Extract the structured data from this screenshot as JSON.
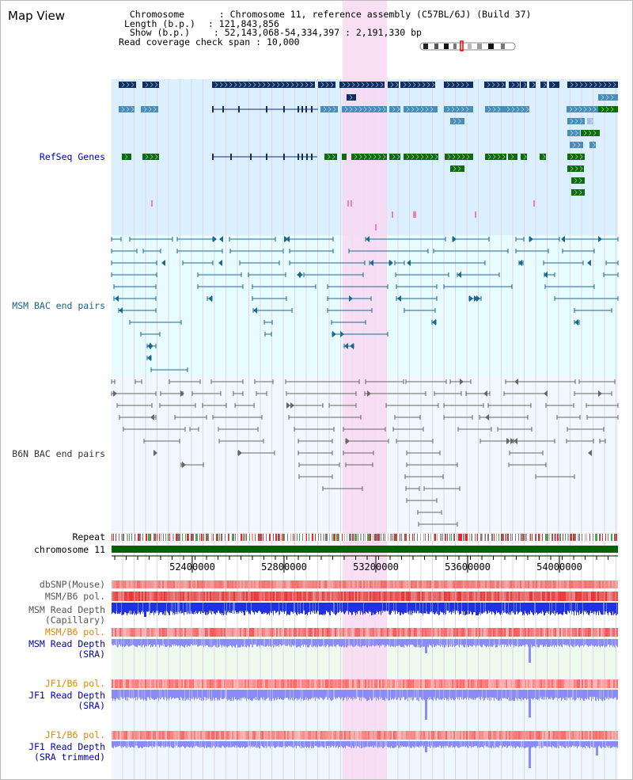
{
  "title": "Map View",
  "info": {
    "chromosome_label": "Chromosome",
    "chromosome_value": "Chromosome 11, reference assembly (C57BL/6J) (Build 37)",
    "length_label": "Length (b.p.)",
    "length_value": "121,843,856",
    "show_label": "Show (b.p.)",
    "show_value": "52,143,068-54,334,397 : 2,191,330 bp",
    "coverage_label": "Read coverage check span",
    "coverage_value": "10,000"
  },
  "tracks": {
    "refseq": "RefSeq Genes",
    "msm_bac": "MSM BAC end pairs",
    "b6n_bac": "B6N BAC end pairs",
    "repeat": "Repeat",
    "chromosome": "chromosome 11",
    "dbsnp": "dbSNP(Mouse)",
    "msm_b6_pol": "MSM/B6 pol.",
    "msm_depth_cap_1": "MSM Read Depth",
    "msm_depth_cap_2": "(Capillary)",
    "msm_b6_pol2": "MSM/B6 pol.",
    "msm_depth_sra_1": "MSM Read Depth",
    "msm_depth_sra_2": "(SRA)",
    "jf1_b6_pol": "JF1/B6 pol.",
    "jf1_depth_sra_1": "JF1 Read Depth",
    "jf1_depth_sra_2": "(SRA)",
    "jf1_b6_pol2": "JF1/B6 pol.",
    "jf1_depth_trim_1": "JF1 Read Depth",
    "jf1_depth_trim_2": "(SRA trimmed)"
  },
  "axis_ticks": [
    "52400000",
    "52800000",
    "53200000",
    "53600000",
    "54000000"
  ],
  "colors": {
    "refseq_bg": "#dcefff",
    "msm_bg": "#e8fcff",
    "b6n_bg": "#f2f6ff",
    "highlight": "#f8d9f2",
    "refseq_dark": "#0f2f64",
    "refseq_mid": "#4a8db8",
    "refseq_green": "#0e6b0e",
    "msm_bac": "#1b6890",
    "b6n_bac": "#666666",
    "chromosome": "#066106",
    "snp": "#f08080",
    "pol": "#e8302c",
    "depth_cap": "#2030e8",
    "depth_sra": "#8a8af8",
    "label_blue": "#0000aa",
    "label_orange": "#dd8800"
  }
}
